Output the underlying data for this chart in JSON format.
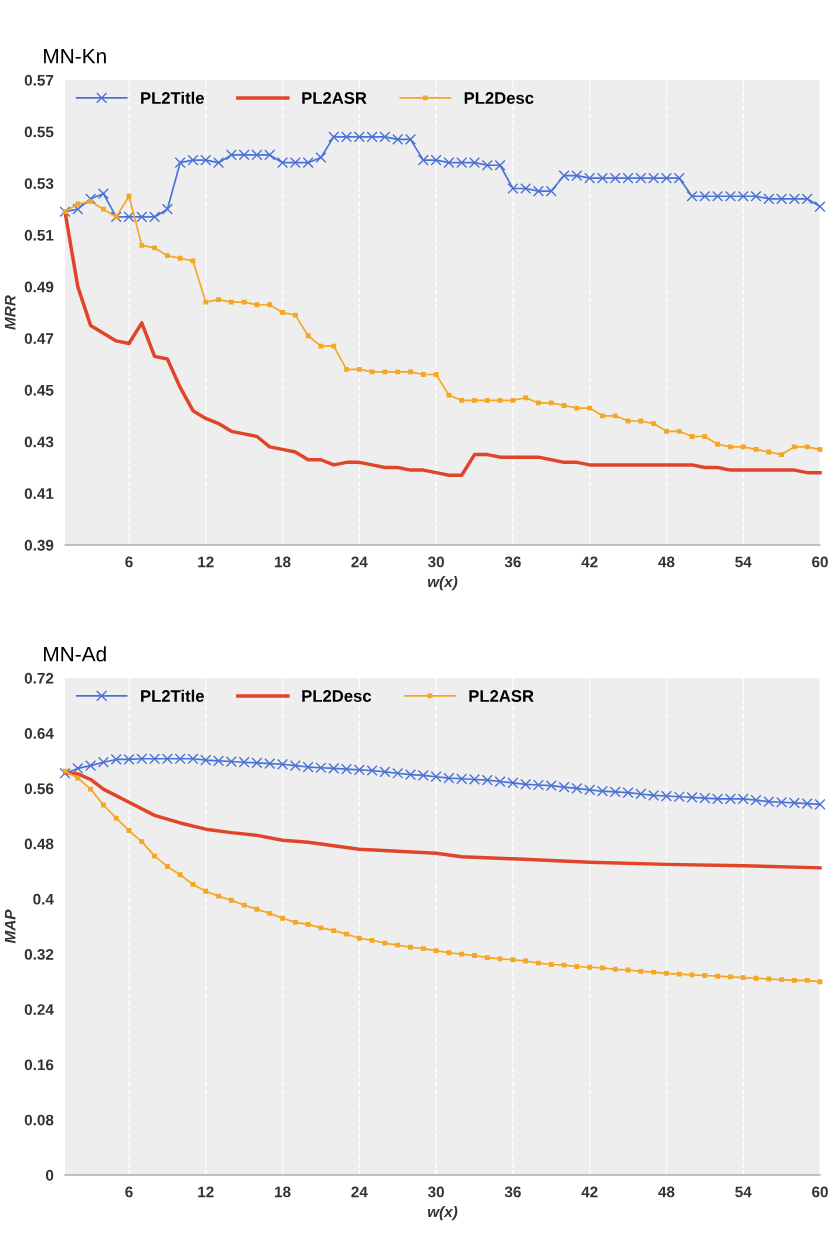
{
  "chart_data": [
    {
      "type": "line",
      "title": "MN-Kn",
      "xlabel": "w(x)",
      "ylabel": "MRR",
      "xlim": [
        1,
        60
      ],
      "xticks": [
        6,
        12,
        18,
        24,
        30,
        36,
        42,
        48,
        54,
        60
      ],
      "ylim": [
        0.39,
        0.57
      ],
      "yticks": [
        0.39,
        0.41,
        0.43,
        0.45,
        0.47,
        0.49,
        0.51,
        0.53,
        0.55,
        0.57
      ],
      "grid": "x",
      "legend": "top left",
      "x": [
        1,
        2,
        3,
        4,
        5,
        6,
        7,
        8,
        9,
        10,
        11,
        12,
        13,
        14,
        15,
        16,
        17,
        18,
        19,
        20,
        21,
        22,
        23,
        24,
        25,
        26,
        27,
        28,
        29,
        30,
        31,
        32,
        33,
        34,
        35,
        36,
        37,
        38,
        39,
        40,
        41,
        42,
        43,
        44,
        45,
        46,
        47,
        48,
        49,
        50,
        51,
        52,
        53,
        54,
        55,
        56,
        57,
        58,
        59,
        60
      ],
      "series": [
        {
          "name": "PL2Title",
          "color": "#4a72d6",
          "marker": "cross",
          "values": [
            0.519,
            0.52,
            0.524,
            0.526,
            0.517,
            0.517,
            0.517,
            0.517,
            0.52,
            0.538,
            0.539,
            0.539,
            0.538,
            0.541,
            0.541,
            0.541,
            0.541,
            0.538,
            0.538,
            0.538,
            0.54,
            0.548,
            0.548,
            0.548,
            0.548,
            0.548,
            0.547,
            0.547,
            0.539,
            0.539,
            0.538,
            0.538,
            0.538,
            0.537,
            0.537,
            0.528,
            0.528,
            0.527,
            0.527,
            0.533,
            0.533,
            0.532,
            0.532,
            0.532,
            0.532,
            0.532,
            0.532,
            0.532,
            0.532,
            0.525,
            0.525,
            0.525,
            0.525,
            0.525,
            0.525,
            0.524,
            0.524,
            0.524,
            0.524,
            0.521
          ]
        },
        {
          "name": "PL2ASR",
          "color": "#e0452a",
          "marker": "none",
          "values": [
            0.519,
            0.49,
            0.475,
            0.472,
            0.469,
            0.468,
            0.476,
            0.463,
            0.462,
            0.451,
            0.442,
            0.439,
            0.437,
            0.434,
            0.433,
            0.432,
            0.428,
            0.427,
            0.426,
            0.423,
            0.423,
            0.421,
            0.422,
            0.422,
            0.421,
            0.42,
            0.42,
            0.419,
            0.419,
            0.418,
            0.417,
            0.417,
            0.425,
            0.425,
            0.424,
            0.424,
            0.424,
            0.424,
            0.423,
            0.422,
            0.422,
            0.421,
            0.421,
            0.421,
            0.421,
            0.421,
            0.421,
            0.421,
            0.421,
            0.421,
            0.42,
            0.42,
            0.419,
            0.419,
            0.419,
            0.419,
            0.419,
            0.419,
            0.418,
            0.418
          ]
        },
        {
          "name": "PL2Desc",
          "color": "#f5a623",
          "marker": "square",
          "values": [
            0.519,
            0.522,
            0.523,
            0.52,
            0.517,
            0.525,
            0.506,
            0.505,
            0.502,
            0.501,
            0.5,
            0.484,
            0.485,
            0.484,
            0.484,
            0.483,
            0.483,
            0.48,
            0.479,
            0.471,
            0.467,
            0.467,
            0.458,
            0.458,
            0.457,
            0.457,
            0.457,
            0.457,
            0.456,
            0.456,
            0.448,
            0.446,
            0.446,
            0.446,
            0.446,
            0.446,
            0.447,
            0.445,
            0.445,
            0.444,
            0.443,
            0.443,
            0.44,
            0.44,
            0.438,
            0.438,
            0.437,
            0.434,
            0.434,
            0.432,
            0.432,
            0.429,
            0.428,
            0.428,
            0.427,
            0.426,
            0.425,
            0.428,
            0.428,
            0.427
          ]
        }
      ]
    },
    {
      "type": "line",
      "title": "MN-Ad",
      "xlabel": "w(x)",
      "ylabel": "MAP",
      "xlim": [
        1,
        60
      ],
      "xticks": [
        6,
        12,
        18,
        24,
        30,
        36,
        42,
        48,
        54,
        60
      ],
      "ylim": [
        0,
        0.72
      ],
      "yticks": [
        0,
        0.08,
        0.16,
        0.24,
        0.32,
        0.4,
        0.48,
        0.56,
        0.64,
        0.72
      ],
      "grid": "x",
      "legend": "top left",
      "x": [
        1,
        2,
        3,
        4,
        5,
        6,
        7,
        8,
        9,
        10,
        11,
        12,
        13,
        14,
        15,
        16,
        17,
        18,
        19,
        20,
        21,
        22,
        23,
        24,
        25,
        26,
        27,
        28,
        29,
        30,
        31,
        32,
        33,
        34,
        35,
        36,
        37,
        38,
        39,
        40,
        41,
        42,
        43,
        44,
        45,
        46,
        47,
        48,
        49,
        50,
        51,
        52,
        53,
        54,
        55,
        56,
        57,
        58,
        59,
        60
      ],
      "series": [
        {
          "name": "PL2Title",
          "color": "#4a72d6",
          "marker": "cross",
          "values": [
            0.582,
            0.589,
            0.593,
            0.598,
            0.602,
            0.602,
            0.603,
            0.603,
            0.603,
            0.603,
            0.603,
            0.601,
            0.6,
            0.599,
            0.598,
            0.597,
            0.596,
            0.595,
            0.593,
            0.591,
            0.59,
            0.589,
            0.588,
            0.587,
            0.586,
            0.584,
            0.582,
            0.58,
            0.579,
            0.577,
            0.575,
            0.574,
            0.573,
            0.572,
            0.57,
            0.568,
            0.566,
            0.565,
            0.564,
            0.562,
            0.56,
            0.558,
            0.556,
            0.555,
            0.554,
            0.552,
            0.55,
            0.549,
            0.548,
            0.547,
            0.546,
            0.545,
            0.545,
            0.545,
            0.543,
            0.541,
            0.54,
            0.539,
            0.538,
            0.537
          ]
        },
        {
          "name": "PL2Desc",
          "color": "#e0452a",
          "marker": "none",
          "x": [
            1,
            2,
            3,
            4,
            6,
            8,
            10,
            12,
            14,
            16,
            18,
            20,
            24,
            30,
            32,
            36,
            42,
            48,
            54,
            60
          ],
          "values": [
            0.583,
            0.581,
            0.573,
            0.559,
            0.54,
            0.521,
            0.51,
            0.501,
            0.496,
            0.492,
            0.485,
            0.482,
            0.472,
            0.466,
            0.461,
            0.458,
            0.453,
            0.45,
            0.448,
            0.445
          ]
        },
        {
          "name": "PL2ASR",
          "color": "#f5a623",
          "marker": "square",
          "values": [
            0.585,
            0.575,
            0.559,
            0.536,
            0.517,
            0.499,
            0.483,
            0.462,
            0.447,
            0.435,
            0.421,
            0.411,
            0.404,
            0.398,
            0.391,
            0.385,
            0.379,
            0.372,
            0.366,
            0.363,
            0.358,
            0.354,
            0.349,
            0.343,
            0.34,
            0.336,
            0.333,
            0.33,
            0.328,
            0.325,
            0.322,
            0.32,
            0.318,
            0.315,
            0.313,
            0.312,
            0.31,
            0.307,
            0.305,
            0.304,
            0.302,
            0.301,
            0.3,
            0.298,
            0.297,
            0.295,
            0.294,
            0.292,
            0.291,
            0.29,
            0.289,
            0.288,
            0.287,
            0.286,
            0.285,
            0.284,
            0.283,
            0.282,
            0.282,
            0.28
          ]
        }
      ]
    }
  ]
}
